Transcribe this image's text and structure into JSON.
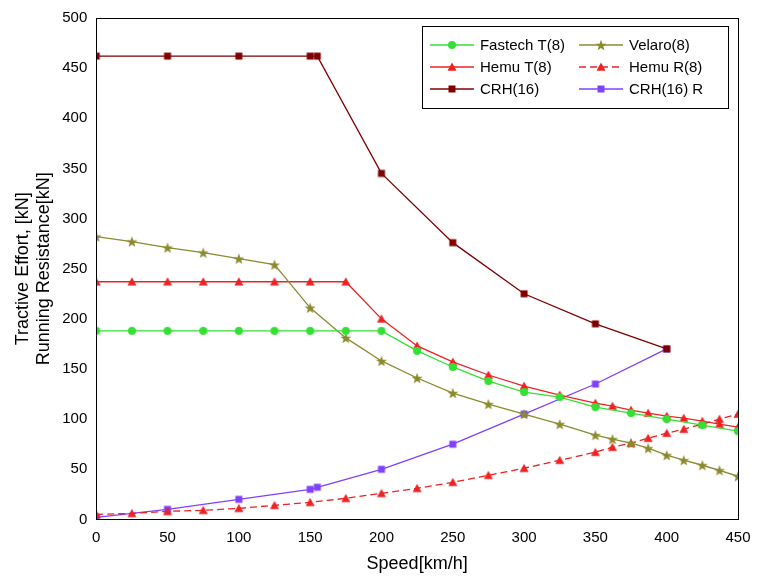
{
  "chart_data": {
    "type": "line",
    "x_label": "Speed[km/h]",
    "y_label": [
      "Tractive Effort, [kN]",
      "Running Resistance[kN]"
    ],
    "xlim": [
      0,
      450
    ],
    "xticks": [
      0,
      50,
      100,
      150,
      200,
      250,
      300,
      350,
      400,
      450
    ],
    "ylim": [
      0,
      500
    ],
    "yticks": [
      0,
      50,
      100,
      150,
      200,
      250,
      300,
      350,
      400,
      450,
      500
    ],
    "grid": false,
    "legend": "top right",
    "series": [
      {
        "name": "Fastech T(8)",
        "color": "#33e033",
        "marker": "circle",
        "line_style": "solid",
        "x": [
          0,
          25,
          50,
          75,
          100,
          125,
          150,
          175,
          200,
          225,
          250,
          275,
          300,
          325,
          350,
          375,
          400,
          425,
          450
        ],
        "values": [
          188,
          188,
          188,
          188,
          188,
          188,
          188,
          188,
          188,
          168,
          152,
          138,
          127,
          122,
          112,
          106,
          100,
          94,
          88
        ]
      },
      {
        "name": "Velaro(8)",
        "color": "#8b8b2e",
        "marker": "star",
        "line_style": "solid",
        "x": [
          0,
          25,
          50,
          75,
          100,
          125,
          150,
          175,
          200,
          225,
          250,
          275,
          300,
          325,
          350,
          362,
          375,
          387,
          400,
          412,
          425,
          437,
          450
        ],
        "values": [
          282,
          277,
          271,
          266,
          260,
          254,
          211,
          181,
          158,
          141,
          126,
          115,
          105,
          95,
          84,
          80,
          76,
          71,
          64,
          59,
          54,
          49,
          43
        ]
      },
      {
        "name": "Hemu T(8)",
        "color": "#ee2222",
        "marker": "triangle",
        "line_style": "solid",
        "x": [
          0,
          25,
          50,
          75,
          100,
          125,
          150,
          175,
          200,
          225,
          250,
          275,
          300,
          325,
          350,
          362,
          375,
          387,
          400,
          412,
          425,
          437,
          450
        ],
        "values": [
          237,
          237,
          237,
          237,
          237,
          237,
          237,
          237,
          200,
          173,
          157,
          144,
          133,
          124,
          116,
          113,
          109,
          106,
          103,
          101,
          98,
          95,
          92
        ]
      },
      {
        "name": "Hemu R(8)",
        "color": "#ee2222",
        "marker": "triangle",
        "line_style": "dashed",
        "x": [
          0,
          25,
          50,
          75,
          100,
          125,
          150,
          175,
          200,
          225,
          250,
          275,
          300,
          325,
          350,
          362,
          375,
          387,
          400,
          412,
          425,
          437,
          450
        ],
        "values": [
          5,
          6,
          8,
          9,
          11,
          14,
          17,
          21,
          26,
          31,
          37,
          44,
          51,
          59,
          67,
          72,
          76,
          81,
          86,
          90,
          95,
          100,
          105
        ]
      },
      {
        "name": "CRH(16)",
        "color": "#800000",
        "marker": "square",
        "line_style": "solid",
        "x": [
          0,
          50,
          100,
          150,
          155,
          200,
          250,
          300,
          350,
          400
        ],
        "values": [
          462,
          462,
          462,
          462,
          462,
          345,
          276,
          225,
          195,
          170
        ]
      },
      {
        "name": "CRH(16) R",
        "color": "#8040ff",
        "marker": "square",
        "line_style": "solid",
        "x": [
          0,
          50,
          100,
          150,
          155,
          200,
          250,
          300,
          350,
          400
        ],
        "values": [
          2,
          10,
          20,
          30,
          32,
          50,
          75,
          105,
          135,
          170
        ]
      }
    ]
  }
}
